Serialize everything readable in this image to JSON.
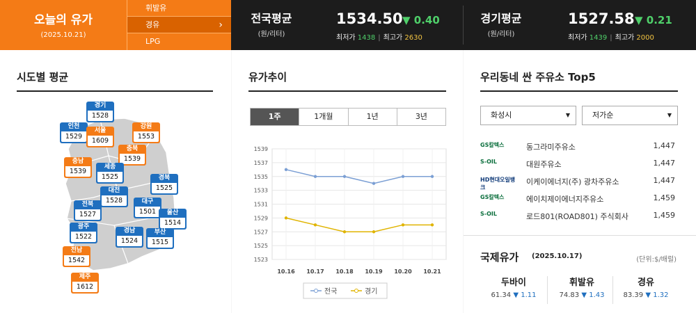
{
  "brand": {
    "title": "오늘의 유가",
    "date": "(2025.10.21)"
  },
  "fuel_tabs": [
    "휘발유",
    "경유",
    "LPG"
  ],
  "national": {
    "label": "전국평균",
    "unit": "(원/리터)",
    "price": "1534.50",
    "change": "0.40",
    "min_label": "최저가",
    "min": "1438",
    "max_label": "최고가",
    "max": "2630"
  },
  "gyeonggi": {
    "label": "경기평균",
    "unit": "(원/리터)",
    "price": "1527.58",
    "change": "0.21",
    "min_label": "최저가",
    "min": "1439",
    "max_label": "최고가",
    "max": "2000"
  },
  "regions": {
    "title": "시도별 평균",
    "items": [
      {
        "name": "경기",
        "value": "1528",
        "color": "blue"
      },
      {
        "name": "인천",
        "value": "1529",
        "color": "blue"
      },
      {
        "name": "서울",
        "value": "1609",
        "color": "orange"
      },
      {
        "name": "강원",
        "value": "1553",
        "color": "orange"
      },
      {
        "name": "충북",
        "value": "1539",
        "color": "orange"
      },
      {
        "name": "충남",
        "value": "1539",
        "color": "orange"
      },
      {
        "name": "세종",
        "value": "1525",
        "color": "blue"
      },
      {
        "name": "경북",
        "value": "1525",
        "color": "blue"
      },
      {
        "name": "대전",
        "value": "1528",
        "color": "blue"
      },
      {
        "name": "대구",
        "value": "1501",
        "color": "blue"
      },
      {
        "name": "전북",
        "value": "1527",
        "color": "blue"
      },
      {
        "name": "울산",
        "value": "1514",
        "color": "blue"
      },
      {
        "name": "광주",
        "value": "1522",
        "color": "blue"
      },
      {
        "name": "경남",
        "value": "1524",
        "color": "blue"
      },
      {
        "name": "부산",
        "value": "1515",
        "color": "blue"
      },
      {
        "name": "전남",
        "value": "1542",
        "color": "orange"
      },
      {
        "name": "제주",
        "value": "1612",
        "color": "orange"
      }
    ]
  },
  "trend": {
    "title": "유가추이",
    "tabs": [
      "1주",
      "1개월",
      "1년",
      "3년"
    ]
  },
  "chart_data": {
    "type": "line",
    "x": [
      "10.16",
      "10.17",
      "10.18",
      "10.19",
      "10.20",
      "10.21"
    ],
    "series": [
      {
        "name": "전국",
        "values": [
          1536,
          1535,
          1535,
          1534,
          1535,
          1535
        ],
        "color": "#7b9fd4"
      },
      {
        "name": "경기",
        "values": [
          1529,
          1528,
          1527,
          1527,
          1528,
          1528
        ],
        "color": "#e0b400"
      }
    ],
    "yticks": [
      1523,
      1525,
      1527,
      1529,
      1531,
      1533,
      1535,
      1537,
      1539
    ],
    "ylim": [
      1523,
      1539
    ],
    "grid": true,
    "legend": "bottom"
  },
  "top5": {
    "title": "우리동네 싼 주유소 Top5",
    "city": "화성시",
    "sort": "저가순",
    "stations": [
      {
        "brand": "GS칼텍스",
        "name": "동그라미주유소",
        "price": "1,447"
      },
      {
        "brand": "S-OIL",
        "name": "대원주유소",
        "price": "1,447"
      },
      {
        "brand": "HD현대오일뱅크",
        "name": "이케이에너지(주) 광차주유소",
        "price": "1,447"
      },
      {
        "brand": "GS칼텍스",
        "name": "에이치제이에너지주유소",
        "price": "1,459"
      },
      {
        "brand": "S-OIL",
        "name": "로드801(ROAD801) 주식회사",
        "price": "1,459"
      }
    ]
  },
  "intl": {
    "title": "국제유가",
    "date": "(2025.10.17)",
    "unit": "(단위:$/배럴)",
    "items": [
      {
        "name": "두바이",
        "value": "61.34",
        "change": "1.11"
      },
      {
        "name": "휘발유",
        "value": "74.83",
        "change": "1.43"
      },
      {
        "name": "경유",
        "value": "83.39",
        "change": "1.32"
      }
    ]
  }
}
